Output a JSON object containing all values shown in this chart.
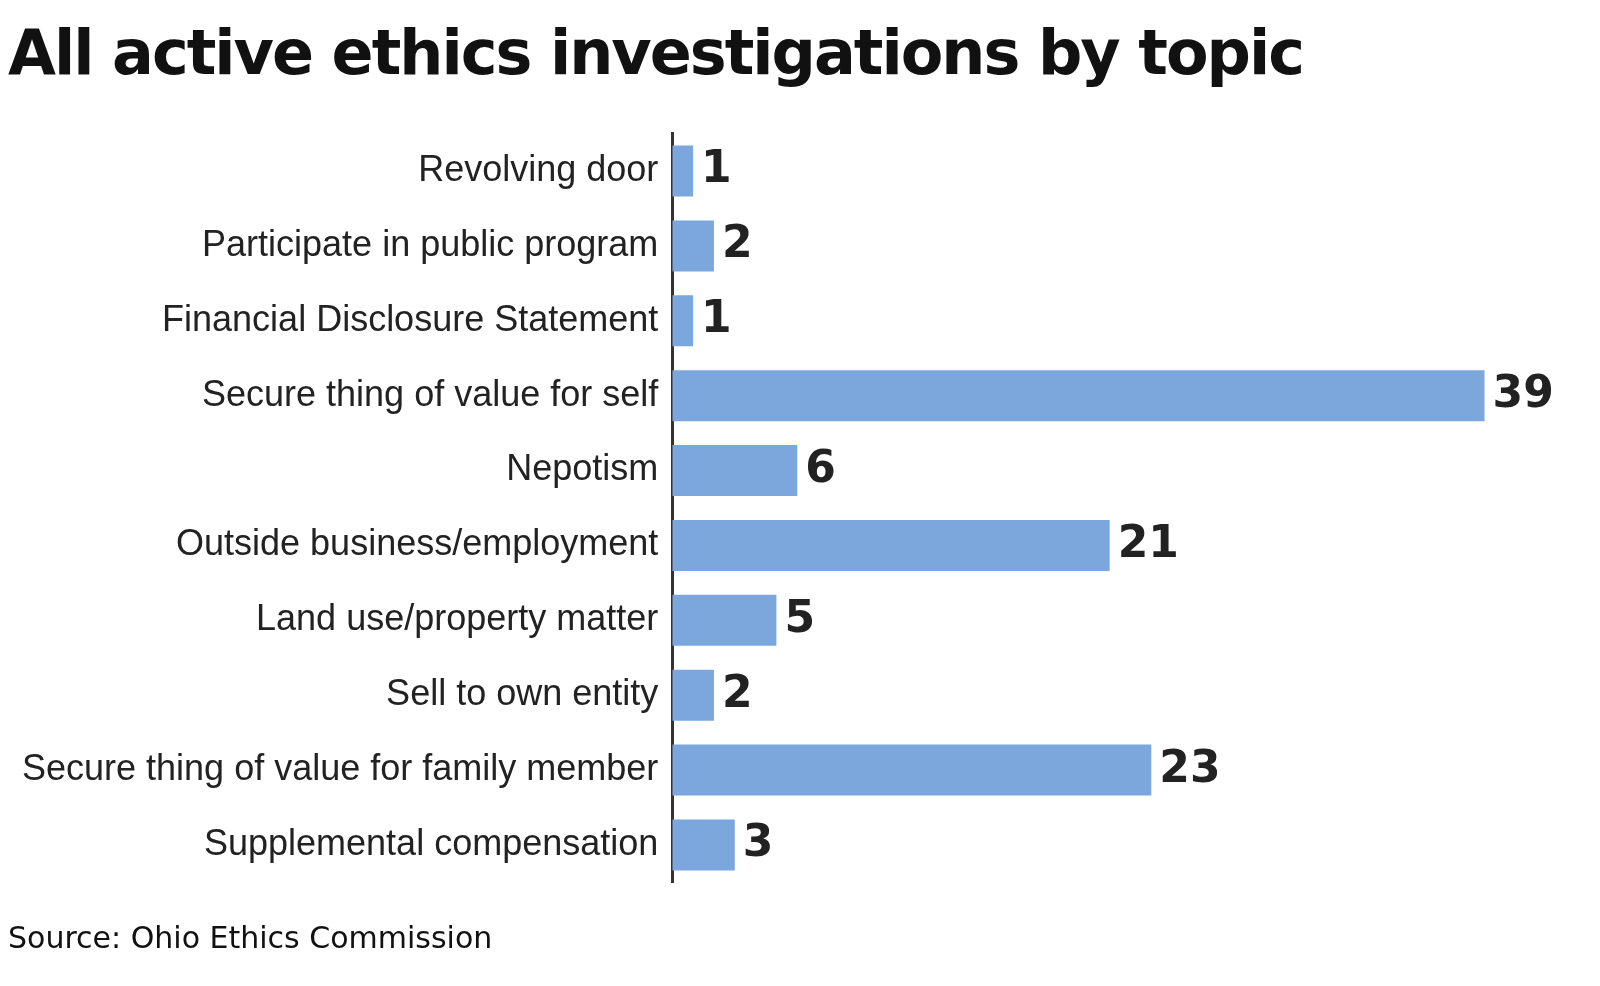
{
  "chart_data": {
    "type": "bar",
    "orientation": "horizontal",
    "title": "All active ethics investigations by topic",
    "categories": [
      "Revolving door",
      "Participate in public program",
      "Financial Disclosure Statement",
      "Secure thing of value for self",
      "Nepotism",
      "Outside business/employment",
      "Land use/property matter",
      "Sell to own entity",
      "Secure thing of value for family member",
      "Supplemental compensation"
    ],
    "values": [
      1,
      2,
      1,
      39,
      6,
      21,
      5,
      2,
      23,
      3
    ],
    "color": "#7ba7dc",
    "data_labels": true,
    "legend": false,
    "annotations": [
      "Source: Ohio Ethics Commission"
    ]
  }
}
